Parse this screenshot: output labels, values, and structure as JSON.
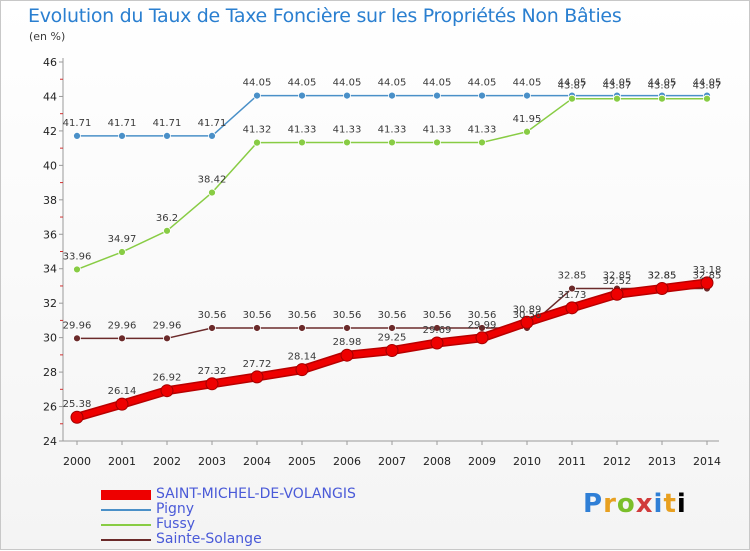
{
  "chart_data": {
    "type": "line",
    "title": "Evolution du Taux de Taxe Foncière sur les Propriétés Non Bâties",
    "ylabel": "(en %)",
    "xlabel": "",
    "x": [
      "2000",
      "2001",
      "2002",
      "2003",
      "2004",
      "2005",
      "2006",
      "2007",
      "2008",
      "2009",
      "2010",
      "2011",
      "2012",
      "2013",
      "2014"
    ],
    "ylim": [
      24,
      46
    ],
    "yticks": [
      24,
      26,
      28,
      30,
      32,
      34,
      36,
      38,
      40,
      42,
      44,
      46
    ],
    "grid": false,
    "series": [
      {
        "name": "SAINT-MICHEL-DE-VOLANGIS",
        "color": "#ee0000",
        "values": [
          25.38,
          26.14,
          26.92,
          27.32,
          27.72,
          28.14,
          28.98,
          29.25,
          29.69,
          29.99,
          30.89,
          31.73,
          32.52,
          32.85,
          33.18
        ],
        "labels": [
          "25.38",
          "26.14",
          "26.92",
          "27.32",
          "27.72",
          "28.14",
          "28.98",
          "29.25",
          "29.69",
          "29.99",
          "30.89",
          "31.73",
          "32.52",
          "32.85",
          "33.18"
        ]
      },
      {
        "name": "Pigny",
        "color": "#4a90c8",
        "values": [
          41.71,
          41.71,
          41.71,
          41.71,
          44.05,
          44.05,
          44.05,
          44.05,
          44.05,
          44.05,
          44.05,
          44.05,
          44.05,
          44.05,
          44.05
        ],
        "labels": [
          "41.71",
          "41.71",
          "41.71",
          "41.71",
          "44.05",
          "44.05",
          "44.05",
          "44.05",
          "44.05",
          "44.05",
          "44.05",
          "44.05",
          "44.05",
          "44.05",
          "44.05"
        ]
      },
      {
        "name": "Fussy",
        "color": "#88cc44",
        "values": [
          33.96,
          34.97,
          36.2,
          38.42,
          41.32,
          41.33,
          41.33,
          41.33,
          41.33,
          41.33,
          41.95,
          43.87,
          43.87,
          43.87,
          43.87
        ],
        "labels": [
          "33.96",
          "34.97",
          "36.2",
          "38.42",
          "41.32",
          "41.33",
          "41.33",
          "41.33",
          "41.33",
          "41.33",
          "41.95",
          "43.87",
          "43.87",
          "43.87",
          "43.87"
        ]
      },
      {
        "name": "Sainte-Solange",
        "color": "#6b2a2a",
        "values": [
          29.96,
          29.96,
          29.96,
          30.56,
          30.56,
          30.56,
          30.56,
          30.56,
          30.56,
          30.56,
          30.56,
          32.85,
          32.85,
          32.85,
          32.85
        ],
        "labels": [
          "29.96",
          "29.96",
          "29.96",
          "30.56",
          "30.56",
          "30.56",
          "30.56",
          "30.56",
          "30.56",
          "30.56",
          "30.56",
          "32.85",
          "32.85",
          "32.85",
          "32.85"
        ]
      }
    ]
  },
  "logo": [
    "P",
    "r",
    "o",
    "x",
    "i",
    "t",
    "i"
  ]
}
